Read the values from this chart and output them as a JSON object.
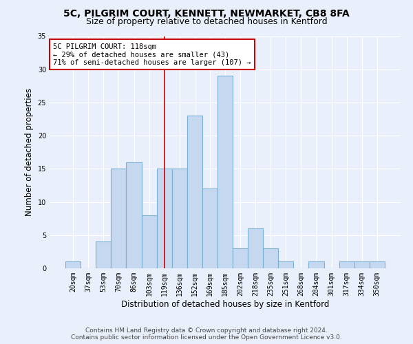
{
  "title_line1": "5C, PILGRIM COURT, KENNETT, NEWMARKET, CB8 8FA",
  "title_line2": "Size of property relative to detached houses in Kentford",
  "xlabel": "Distribution of detached houses by size in Kentford",
  "ylabel": "Number of detached properties",
  "categories": [
    "20sqm",
    "37sqm",
    "53sqm",
    "70sqm",
    "86sqm",
    "103sqm",
    "119sqm",
    "136sqm",
    "152sqm",
    "169sqm",
    "185sqm",
    "202sqm",
    "218sqm",
    "235sqm",
    "251sqm",
    "268sqm",
    "284sqm",
    "301sqm",
    "317sqm",
    "334sqm",
    "350sqm"
  ],
  "values": [
    1,
    0,
    4,
    15,
    16,
    8,
    15,
    15,
    23,
    12,
    29,
    3,
    6,
    3,
    1,
    0,
    1,
    0,
    1,
    1,
    1
  ],
  "bar_color": "#c5d8f0",
  "bar_edge_color": "#7aafd4",
  "bar_edge_width": 0.8,
  "property_line_x": 6,
  "property_line_color": "#cc0000",
  "annotation_line1": "5C PILGRIM COURT: 118sqm",
  "annotation_line2": "← 29% of detached houses are smaller (43)",
  "annotation_line3": "71% of semi-detached houses are larger (107) →",
  "annotation_box_color": "#ffffff",
  "annotation_box_edge_color": "#cc0000",
  "ylim": [
    0,
    35
  ],
  "yticks": [
    0,
    5,
    10,
    15,
    20,
    25,
    30,
    35
  ],
  "background_color": "#eaf0fb",
  "plot_bg_color": "#eaf0fb",
  "grid_color": "#ffffff",
  "footer_line1": "Contains HM Land Registry data © Crown copyright and database right 2024.",
  "footer_line2": "Contains public sector information licensed under the Open Government Licence v3.0.",
  "title_fontsize": 10,
  "subtitle_fontsize": 9,
  "axis_label_fontsize": 8.5,
  "tick_fontsize": 7,
  "annotation_fontsize": 7.5,
  "footer_fontsize": 6.5
}
